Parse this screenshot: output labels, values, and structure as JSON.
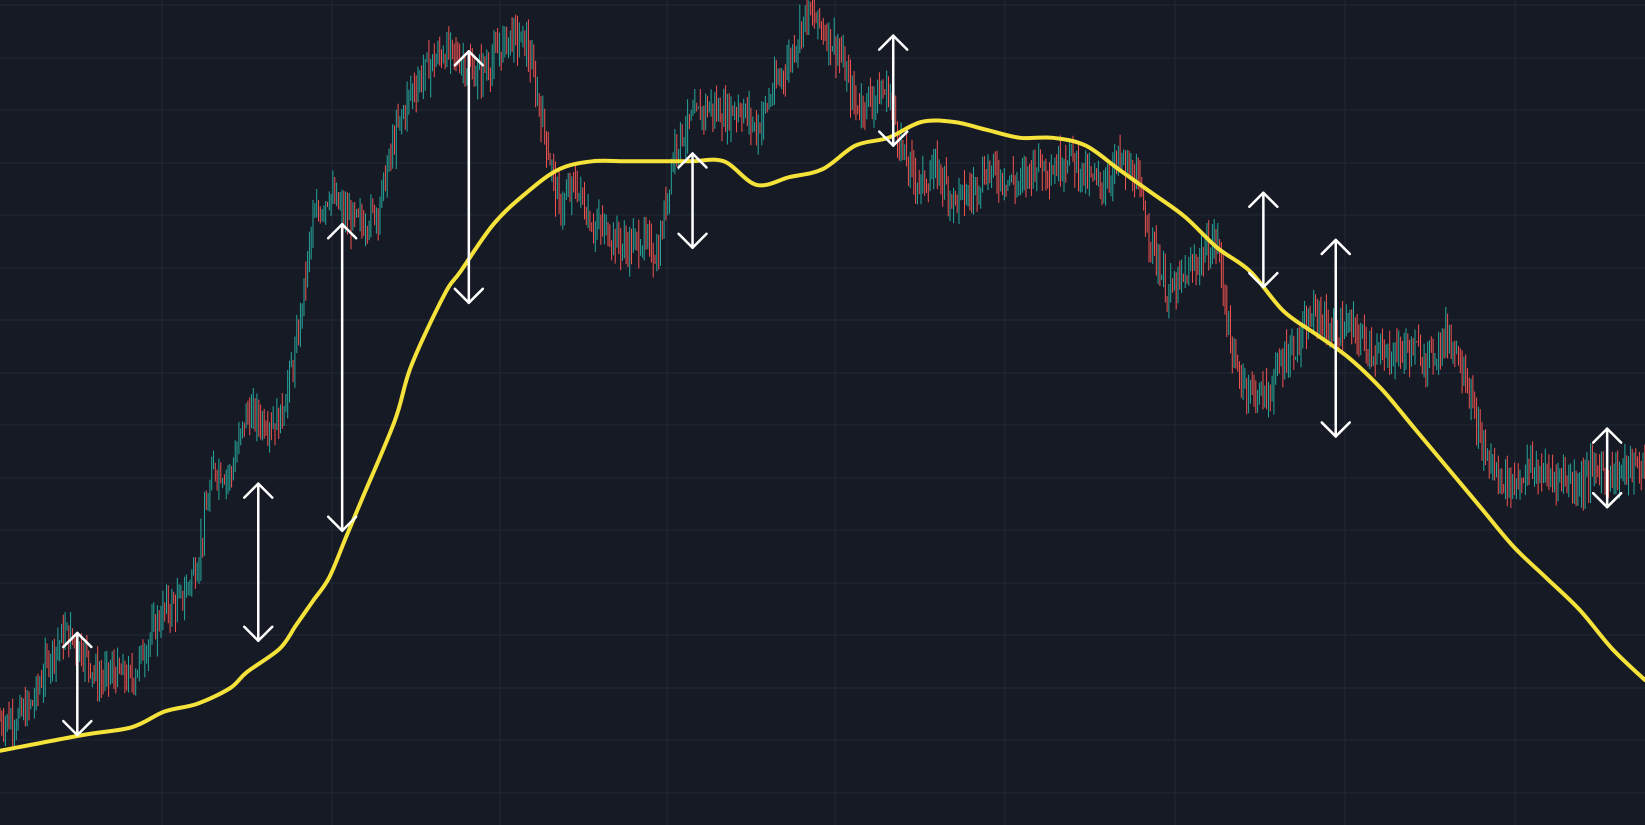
{
  "colors": {
    "background": "#161a25",
    "grid": "#232836",
    "candle_up": "#26a69a",
    "candle_down": "#ef5350",
    "moving_average": "#f5e33b",
    "arrows": "#ffffff"
  },
  "chart_data": {
    "type": "line",
    "title": "",
    "xlabel": "",
    "ylabel": "",
    "grid": true,
    "legend": "none",
    "xlim": [
      0,
      100
    ],
    "ylim": [
      0,
      100
    ],
    "series": [
      {
        "role": "price",
        "style": "candlestick-like wick cloud",
        "x": [
          0,
          1,
          2,
          3,
          4,
          5,
          6,
          7,
          8,
          9,
          10,
          11,
          12,
          13,
          14,
          15,
          16,
          17,
          18,
          19,
          20,
          21,
          22,
          23,
          24,
          25,
          26,
          27,
          28,
          29,
          30,
          31,
          32,
          33,
          34,
          35,
          36,
          37,
          38,
          39,
          40,
          41,
          42,
          43,
          44,
          45,
          46,
          47,
          48,
          49,
          50,
          51,
          52,
          53,
          54,
          55,
          56,
          57,
          58,
          59,
          60,
          61,
          62,
          63,
          64,
          65,
          66,
          67,
          68,
          69,
          70,
          71,
          72,
          73,
          74,
          75,
          76,
          77,
          78,
          79,
          80,
          81,
          82,
          83,
          84,
          85,
          86,
          87,
          88,
          89,
          90,
          91,
          92,
          93,
          94,
          95,
          96,
          97,
          98,
          99,
          100
        ],
        "values": [
          10,
          10,
          12,
          18,
          21,
          19,
          15,
          16,
          15,
          20,
          24,
          25,
          30,
          42,
          41,
          49,
          48,
          48,
          57,
          73,
          77,
          74,
          73,
          75,
          84,
          90,
          93,
          95,
          94,
          92,
          94,
          97,
          96,
          86,
          75,
          78,
          73,
          72,
          70,
          71,
          69,
          83,
          86,
          88,
          87,
          88,
          85,
          90,
          94,
          100,
          98,
          95,
          88,
          89,
          90,
          81,
          78,
          80,
          76,
          77,
          80,
          79,
          78,
          81,
          80,
          82,
          79,
          78,
          81,
          79,
          71,
          64,
          66,
          69,
          71,
          55,
          52,
          51,
          56,
          58,
          62,
          59,
          60,
          58,
          56,
          57,
          57,
          56,
          59,
          55,
          45,
          41,
          40,
          42,
          41,
          41,
          40,
          42,
          41,
          42,
          42
        ]
      },
      {
        "role": "moving-average",
        "style": "smooth line",
        "x": [
          0,
          5,
          8,
          10,
          12,
          14,
          15,
          17,
          18,
          19,
          20,
          21,
          22,
          24,
          25,
          27,
          28,
          30,
          32,
          34,
          36,
          38,
          40,
          42,
          44,
          46,
          48,
          50,
          52,
          54,
          56,
          58,
          60,
          62,
          64,
          66,
          68,
          70,
          72,
          74,
          76,
          78,
          80,
          82,
          84,
          86,
          88,
          90,
          92,
          94,
          96,
          98,
          100
        ],
        "values": [
          6,
          8,
          9,
          11,
          12,
          14,
          16,
          19,
          22,
          25,
          28,
          33,
          38,
          48,
          55,
          64,
          67,
          73,
          77,
          80,
          81,
          81,
          81,
          81,
          81,
          78,
          79,
          80,
          83,
          84,
          86,
          86,
          85,
          84,
          84,
          83,
          80,
          77,
          74,
          70,
          67,
          62,
          59,
          56,
          52,
          47,
          42,
          37,
          32,
          28,
          24,
          19,
          15
        ]
      }
    ],
    "annotations": [
      {
        "type": "double-arrow",
        "x": 4.7,
        "y_top": 21,
        "y_bottom": 8
      },
      {
        "type": "double-arrow",
        "x": 15.7,
        "y_top": 40,
        "y_bottom": 20
      },
      {
        "type": "double-arrow",
        "x": 20.8,
        "y_top": 73,
        "y_bottom": 34
      },
      {
        "type": "double-arrow",
        "x": 28.5,
        "y_top": 95,
        "y_bottom": 63
      },
      {
        "type": "double-arrow",
        "x": 42.1,
        "y_top": 82,
        "y_bottom": 70
      },
      {
        "type": "double-arrow",
        "x": 54.3,
        "y_top": 97,
        "y_bottom": 83
      },
      {
        "type": "double-arrow",
        "x": 76.8,
        "y_top": 77,
        "y_bottom": 65
      },
      {
        "type": "double-arrow",
        "x": 81.2,
        "y_top": 71,
        "y_bottom": 46
      },
      {
        "type": "double-arrow",
        "x": 97.7,
        "y_top": 47,
        "y_bottom": 37
      }
    ]
  }
}
